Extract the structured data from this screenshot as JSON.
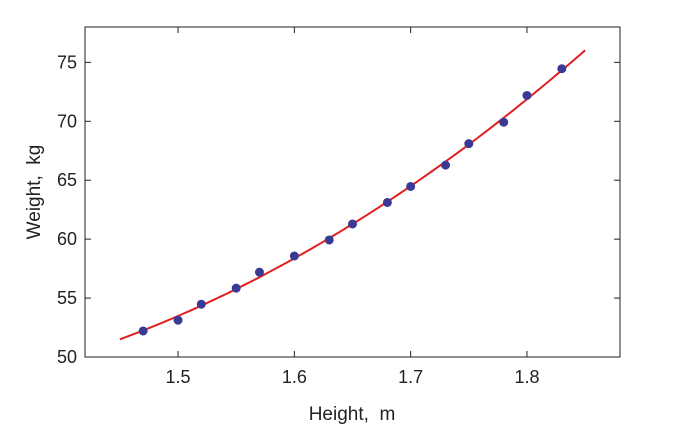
{
  "chart_data": {
    "type": "scatter",
    "xlabel": "Height,  m",
    "ylabel": "Weight,  kg",
    "xlim": [
      1.42,
      1.88
    ],
    "ylim": [
      50,
      78
    ],
    "xticks": [
      1.5,
      1.6,
      1.7,
      1.8
    ],
    "yticks": [
      50,
      55,
      60,
      65,
      70,
      75
    ],
    "grid": false,
    "points": {
      "color": "#3a3a94",
      "x": [
        1.47,
        1.5,
        1.52,
        1.55,
        1.57,
        1.6,
        1.63,
        1.65,
        1.68,
        1.7,
        1.73,
        1.75,
        1.78,
        1.8,
        1.83
      ],
      "y": [
        52.21,
        53.12,
        54.48,
        55.84,
        57.2,
        58.57,
        59.93,
        61.29,
        63.11,
        64.47,
        66.28,
        68.1,
        69.92,
        72.19,
        74.46
      ]
    },
    "fit": {
      "type": "quadratic",
      "color": "#e02020",
      "coefficients": [
        128.81,
        -143.16,
        61.96
      ],
      "x_range": [
        1.45,
        1.85
      ]
    }
  }
}
